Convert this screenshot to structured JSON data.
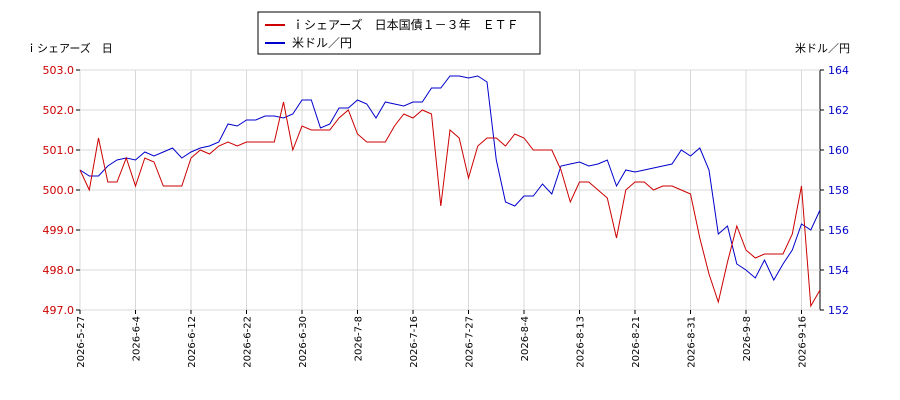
{
  "chart_data": {
    "type": "line",
    "title": "",
    "y_left_label": "ｉシェアーズ　日",
    "y_right_label": "米ドル／円",
    "y_left_range": [
      497.0,
      503.0
    ],
    "y_right_range": [
      152,
      164
    ],
    "y_left_ticks": [
      "503.0",
      "502.0",
      "501.0",
      "500.0",
      "499.0",
      "498.0",
      "497.0"
    ],
    "y_right_ticks": [
      "164",
      "162",
      "160",
      "158",
      "156",
      "154",
      "152"
    ],
    "x_tick_labels": [
      "2026-5-27",
      "2026-6-4",
      "2026-6-12",
      "2026-6-22",
      "2026-6-30",
      "2026-7-8",
      "2026-7-16",
      "2026-7-27",
      "2026-8-4",
      "2026-8-13",
      "2026-8-21",
      "2026-8-31",
      "2026-9-8",
      "2026-9-16"
    ],
    "x_tick_index": [
      0,
      6,
      12,
      18,
      24,
      30,
      36,
      42,
      48,
      54,
      60,
      66,
      72,
      78
    ],
    "grid": true,
    "legend_position": "top-center",
    "colors": {
      "etf": "#cc0000",
      "usdjpy": "#0000cc",
      "grid": "#d8d8d8"
    },
    "series": [
      {
        "name": "ｉシェアーズ　日本国債１－３年　ＥＴＦ",
        "axis": "left",
        "values": [
          500.5,
          500.0,
          501.3,
          500.2,
          500.2,
          500.8,
          500.1,
          500.8,
          500.7,
          500.1,
          500.1,
          500.1,
          500.8,
          501.0,
          500.9,
          501.1,
          501.2,
          501.1,
          501.2,
          501.2,
          501.2,
          501.2,
          502.2,
          501.0,
          501.6,
          501.5,
          501.5,
          501.5,
          501.8,
          502.0,
          501.4,
          501.2,
          501.2,
          501.2,
          501.6,
          501.9,
          501.8,
          502.0,
          501.9,
          499.6,
          501.5,
          501.3,
          500.3,
          501.1,
          501.3,
          501.3,
          501.1,
          501.4,
          501.3,
          501.0,
          501.0,
          501.0,
          500.5,
          499.7,
          500.2,
          500.2,
          500.0,
          499.8,
          498.8,
          500.0,
          500.2,
          500.2,
          500.0,
          500.1,
          500.1,
          500.0,
          499.9,
          498.8,
          497.9,
          497.2,
          498.2,
          499.1,
          498.5,
          498.3,
          498.4,
          498.4,
          498.4,
          498.9,
          500.1,
          497.1,
          497.5
        ]
      },
      {
        "name": "米ドル／円",
        "axis": "right",
        "values": [
          159.0,
          158.7,
          158.7,
          159.2,
          159.5,
          159.6,
          159.5,
          159.9,
          159.7,
          159.9,
          160.1,
          159.6,
          159.9,
          160.1,
          160.2,
          160.4,
          161.3,
          161.2,
          161.5,
          161.5,
          161.7,
          161.7,
          161.6,
          161.8,
          162.5,
          162.5,
          161.1,
          161.3,
          162.1,
          162.1,
          162.5,
          162.3,
          161.6,
          162.4,
          162.3,
          162.2,
          162.4,
          162.4,
          163.1,
          163.1,
          163.7,
          163.7,
          163.6,
          163.7,
          163.4,
          159.5,
          157.4,
          157.2,
          157.7,
          157.7,
          158.3,
          157.8,
          159.2,
          159.3,
          159.4,
          159.2,
          159.3,
          159.5,
          158.2,
          159.0,
          158.9,
          159.0,
          159.1,
          159.2,
          159.3,
          160.0,
          159.7,
          160.1,
          159.0,
          155.8,
          156.2,
          154.3,
          154.0,
          153.6,
          154.5,
          153.5,
          154.3,
          155.0,
          156.3,
          156.0,
          157.0
        ]
      }
    ]
  }
}
